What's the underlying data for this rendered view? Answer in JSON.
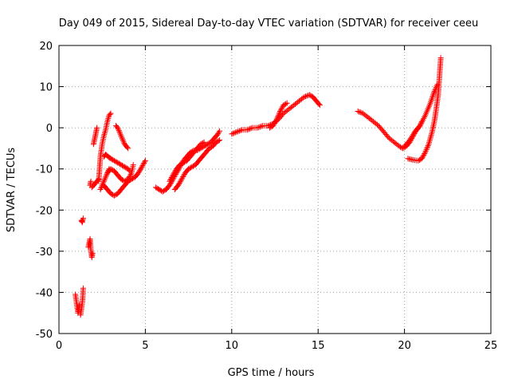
{
  "chart_data": {
    "type": "scatter",
    "title": "Day 049 of 2015, Sidereal Day-to-day VTEC variation (SDTVAR) for receiver ceeu",
    "xlabel": "GPS time / hours",
    "ylabel": "SDTVAR / TECUs",
    "xlim": [
      0,
      25
    ],
    "ylim": [
      -50,
      20
    ],
    "xticks": [
      0,
      5,
      10,
      15,
      20,
      25
    ],
    "yticks": [
      -50,
      -40,
      -30,
      -20,
      -10,
      0,
      10,
      20
    ],
    "xtick_labels": [
      "0",
      "5",
      "10",
      "15",
      "20",
      "25"
    ],
    "ytick_labels": [
      "-50",
      "-40",
      "-30",
      "-20",
      "-10",
      "0",
      "10",
      "20"
    ],
    "grid": true,
    "marker": "plus",
    "color": "#ff0000",
    "series": [
      {
        "name": "SDTVAR",
        "segments": [
          [
            [
              0.95,
              -40.5
            ],
            [
              1.0,
              -42.0
            ],
            [
              1.05,
              -43.5
            ],
            [
              1.1,
              -45.0
            ],
            [
              1.15,
              -44.0
            ],
            [
              1.2,
              -43.0
            ]
          ],
          [
            [
              1.25,
              -45.5
            ],
            [
              1.3,
              -44.0
            ],
            [
              1.35,
              -42.5
            ],
            [
              1.38,
              -41.0
            ],
            [
              1.4,
              -39.0
            ]
          ],
          [
            [
              1.3,
              -22.5
            ],
            [
              1.35,
              -23.0
            ],
            [
              1.4,
              -22.0
            ]
          ],
          [
            [
              1.7,
              -29.0
            ],
            [
              1.75,
              -28.0
            ],
            [
              1.8,
              -27.0
            ],
            [
              1.85,
              -30.0
            ],
            [
              1.9,
              -31.5
            ],
            [
              1.95,
              -30.5
            ]
          ],
          [
            [
              1.8,
              -14.0
            ],
            [
              1.85,
              -13.0
            ]
          ],
          [
            [
              1.9,
              -14.5
            ],
            [
              2.0,
              -14.0
            ],
            [
              2.1,
              -13.5
            ],
            [
              2.2,
              -13.0
            ],
            [
              2.3,
              -12.5
            ]
          ],
          [
            [
              2.0,
              -4.0
            ],
            [
              2.05,
              -3.0
            ],
            [
              2.1,
              -2.0
            ],
            [
              2.15,
              -1.0
            ],
            [
              2.2,
              0.0
            ]
          ],
          [
            [
              2.3,
              -13.0
            ],
            [
              2.35,
              -10.0
            ],
            [
              2.4,
              -7.0
            ],
            [
              2.5,
              -4.0
            ],
            [
              2.6,
              -2.0
            ],
            [
              2.7,
              -0.5
            ],
            [
              2.8,
              1.5
            ],
            [
              2.9,
              3.0
            ],
            [
              3.0,
              3.5
            ]
          ],
          [
            [
              2.4,
              -15.0
            ],
            [
              2.5,
              -14.0
            ],
            [
              2.6,
              -13.0
            ],
            [
              2.7,
              -12.0
            ],
            [
              2.8,
              -11.0
            ],
            [
              2.9,
              -10.0
            ]
          ],
          [
            [
              2.6,
              -7.0
            ],
            [
              2.7,
              -6.5
            ],
            [
              2.8,
              -6.8
            ],
            [
              2.9,
              -7.2
            ],
            [
              3.0,
              -7.5
            ],
            [
              3.2,
              -8.0
            ],
            [
              3.4,
              -8.5
            ],
            [
              3.6,
              -9.0
            ],
            [
              3.8,
              -9.5
            ],
            [
              4.0,
              -10.0
            ],
            [
              4.1,
              -10.5
            ]
          ],
          [
            [
              2.6,
              -14.0
            ],
            [
              2.8,
              -15.0
            ],
            [
              3.0,
              -16.0
            ],
            [
              3.2,
              -16.5
            ],
            [
              3.4,
              -16.0
            ],
            [
              3.6,
              -15.0
            ],
            [
              3.8,
              -14.0
            ],
            [
              4.0,
              -13.0
            ],
            [
              4.2,
              -12.5
            ],
            [
              4.4,
              -12.0
            ],
            [
              4.6,
              -11.0
            ],
            [
              4.8,
              -9.5
            ],
            [
              5.0,
              -8.0
            ]
          ],
          [
            [
              2.8,
              -11.0
            ],
            [
              3.0,
              -10.0
            ],
            [
              3.2,
              -10.5
            ],
            [
              3.4,
              -11.5
            ],
            [
              3.6,
              -12.5
            ],
            [
              3.8,
              -13.0
            ],
            [
              4.0,
              -12.5
            ],
            [
              4.2,
              -11.0
            ],
            [
              4.3,
              -9.0
            ]
          ],
          [
            [
              3.3,
              0.5
            ],
            [
              3.4,
              0.0
            ],
            [
              3.5,
              -1.0
            ],
            [
              3.6,
              -2.0
            ],
            [
              3.7,
              -3.0
            ],
            [
              3.8,
              -4.0
            ],
            [
              3.9,
              -4.5
            ],
            [
              4.0,
              -5.0
            ]
          ],
          [
            [
              5.6,
              -14.5
            ],
            [
              5.8,
              -15.0
            ],
            [
              6.0,
              -15.5
            ],
            [
              6.2,
              -15.0
            ],
            [
              6.4,
              -14.0
            ],
            [
              6.6,
              -12.5
            ],
            [
              6.8,
              -11.0
            ],
            [
              7.0,
              -9.5
            ],
            [
              7.2,
              -8.0
            ],
            [
              7.4,
              -7.0
            ],
            [
              7.6,
              -6.0
            ],
            [
              7.8,
              -5.5
            ],
            [
              8.0,
              -5.5
            ],
            [
              8.2,
              -5.0
            ],
            [
              8.4,
              -4.5
            ],
            [
              8.6,
              -4.0
            ],
            [
              8.8,
              -3.5
            ],
            [
              9.0,
              -2.5
            ],
            [
              9.2,
              -1.5
            ],
            [
              9.3,
              -0.8
            ]
          ],
          [
            [
              6.4,
              -13.0
            ],
            [
              6.6,
              -11.5
            ],
            [
              6.8,
              -10.0
            ],
            [
              7.0,
              -9.0
            ],
            [
              7.2,
              -8.5
            ],
            [
              7.4,
              -8.0
            ],
            [
              7.6,
              -7.0
            ],
            [
              7.8,
              -6.0
            ],
            [
              8.0,
              -5.0
            ],
            [
              8.2,
              -4.0
            ],
            [
              8.4,
              -3.5
            ]
          ],
          [
            [
              6.7,
              -15.0
            ],
            [
              6.9,
              -14.0
            ],
            [
              7.1,
              -12.5
            ],
            [
              7.3,
              -11.0
            ],
            [
              7.5,
              -10.0
            ],
            [
              7.7,
              -9.5
            ],
            [
              7.9,
              -9.0
            ],
            [
              8.1,
              -8.0
            ],
            [
              8.3,
              -7.0
            ],
            [
              8.5,
              -6.0
            ],
            [
              8.7,
              -5.0
            ],
            [
              8.9,
              -4.5
            ],
            [
              9.1,
              -3.5
            ],
            [
              9.3,
              -3.0
            ]
          ],
          [
            [
              10.0,
              -1.5
            ],
            [
              10.3,
              -1.0
            ],
            [
              10.6,
              -0.5
            ],
            [
              10.9,
              -0.5
            ],
            [
              11.2,
              0.0
            ],
            [
              11.5,
              0.0
            ],
            [
              11.8,
              0.5
            ],
            [
              12.1,
              0.5
            ],
            [
              12.4,
              1.0
            ],
            [
              12.7,
              2.0
            ],
            [
              13.0,
              3.5
            ],
            [
              13.3,
              4.5
            ],
            [
              13.6,
              5.5
            ],
            [
              13.9,
              6.5
            ],
            [
              14.2,
              7.5
            ],
            [
              14.5,
              8.0
            ],
            [
              14.7,
              7.5
            ],
            [
              14.9,
              6.5
            ],
            [
              15.1,
              5.5
            ]
          ],
          [
            [
              12.2,
              0.0
            ],
            [
              12.4,
              0.5
            ],
            [
              12.6,
              2.0
            ],
            [
              12.8,
              4.0
            ],
            [
              13.0,
              5.5
            ],
            [
              13.2,
              6.0
            ]
          ],
          [
            [
              17.3,
              4.0
            ],
            [
              17.6,
              3.5
            ],
            [
              17.9,
              2.5
            ],
            [
              18.2,
              1.5
            ],
            [
              18.5,
              0.5
            ],
            [
              18.8,
              -1.0
            ],
            [
              19.1,
              -2.5
            ],
            [
              19.4,
              -3.5
            ],
            [
              19.7,
              -4.5
            ],
            [
              19.9,
              -5.0
            ],
            [
              20.1,
              -4.5
            ],
            [
              20.3,
              -3.5
            ],
            [
              20.5,
              -2.0
            ],
            [
              20.7,
              -0.5
            ],
            [
              20.9,
              0.5
            ],
            [
              21.0,
              1.5
            ]
          ],
          [
            [
              20.0,
              -4.5
            ],
            [
              20.3,
              -3.0
            ],
            [
              20.6,
              -1.0
            ],
            [
              20.9,
              0.5
            ],
            [
              21.2,
              3.0
            ],
            [
              21.5,
              6.0
            ],
            [
              21.7,
              8.5
            ],
            [
              21.9,
              10.5
            ]
          ],
          [
            [
              20.2,
              -7.5
            ],
            [
              20.5,
              -7.8
            ],
            [
              20.8,
              -8.0
            ],
            [
              21.0,
              -7.5
            ],
            [
              21.2,
              -6.0
            ],
            [
              21.4,
              -4.0
            ],
            [
              21.6,
              -1.0
            ],
            [
              21.75,
              2.0
            ],
            [
              21.85,
              5.0
            ],
            [
              21.95,
              8.0
            ],
            [
              22.0,
              11.0
            ],
            [
              22.05,
              14.0
            ],
            [
              22.1,
              17.0
            ]
          ]
        ]
      }
    ]
  }
}
